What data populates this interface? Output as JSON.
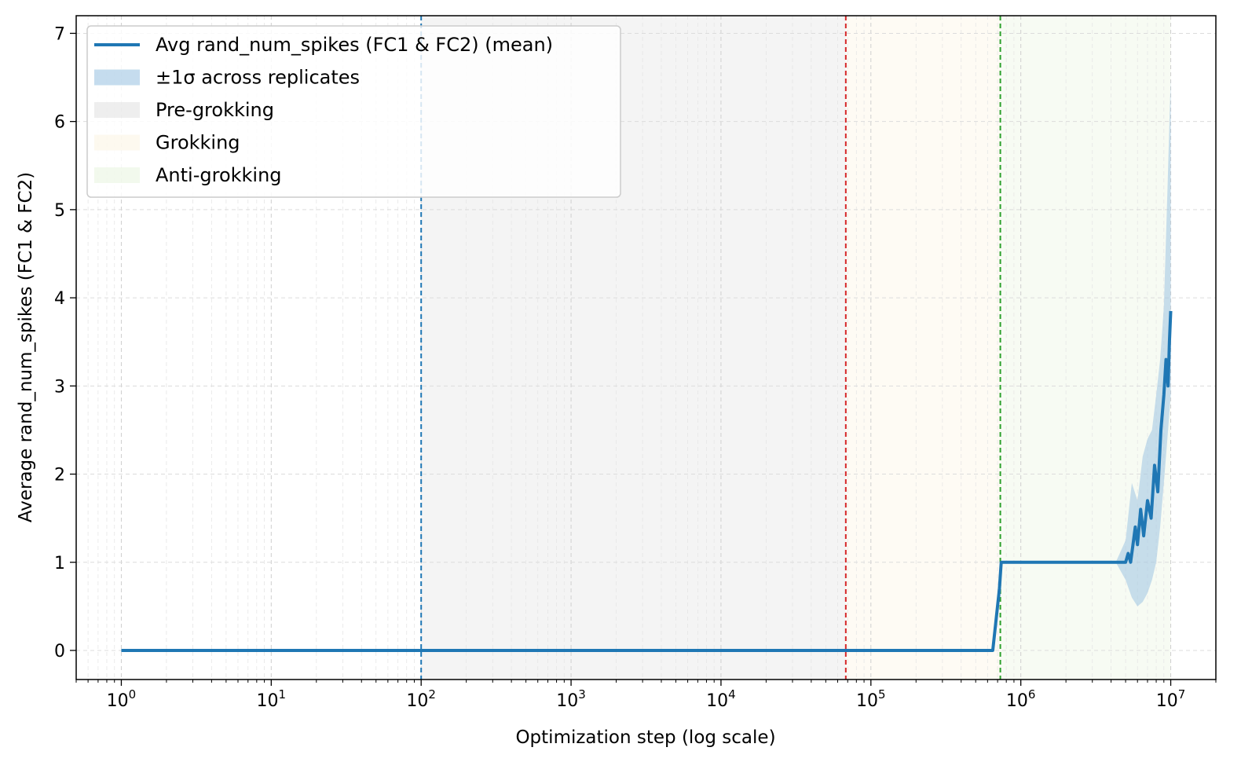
{
  "chart_data": {
    "type": "line",
    "title": "",
    "xlabel": "Optimization step (log scale)",
    "ylabel": "Average rand_num_spikes (FC1 & FC2)",
    "xscale": "log",
    "xlim": [
      0.5,
      20000000
    ],
    "ylim": [
      -0.33,
      7.2
    ],
    "grid": true,
    "legend_position": "upper-left",
    "x_ticks": [
      {
        "value": 1,
        "base": "10",
        "exp": "0"
      },
      {
        "value": 10,
        "base": "10",
        "exp": "1"
      },
      {
        "value": 100,
        "base": "10",
        "exp": "2"
      },
      {
        "value": 1000,
        "base": "10",
        "exp": "3"
      },
      {
        "value": 10000,
        "base": "10",
        "exp": "4"
      },
      {
        "value": 100000,
        "base": "10",
        "exp": "5"
      },
      {
        "value": 1000000,
        "base": "10",
        "exp": "6"
      },
      {
        "value": 10000000,
        "base": "10",
        "exp": "7"
      }
    ],
    "y_ticks": [
      0,
      1,
      2,
      3,
      4,
      5,
      6,
      7
    ],
    "phases": [
      {
        "name": "Pre-grokking",
        "start": 100,
        "end": 68000,
        "color": "#d9d9d9"
      },
      {
        "name": "Grokking",
        "start": 68000,
        "end": 730000,
        "color": "#fbf2dc"
      },
      {
        "name": "Anti-grokking",
        "start": 730000,
        "end": 10000000,
        "color": "#e3f2d8"
      }
    ],
    "vlines": [
      {
        "x": 100,
        "color": "#1f77b4"
      },
      {
        "x": 68000,
        "color": "#d62728"
      },
      {
        "x": 730000,
        "color": "#2ca02c"
      }
    ],
    "series": [
      {
        "name": "Avg rand_num_spikes (FC1 & FC2) (mean)",
        "color": "#1f77b4",
        "x": [
          1,
          10,
          100,
          1000,
          10000,
          100000,
          500000,
          650000,
          720000,
          740000,
          1000000,
          3000000,
          5000000,
          5200000,
          5400000,
          5600000,
          5800000,
          6000000,
          6300000,
          6600000,
          7000000,
          7400000,
          7800000,
          8200000,
          8600000,
          9000000,
          9300000,
          9600000,
          9800000,
          10000000
        ],
        "y": [
          0,
          0,
          0,
          0,
          0,
          0,
          0,
          0,
          0.7,
          1,
          1,
          1,
          1,
          1.1,
          1,
          1.2,
          1.4,
          1.2,
          1.6,
          1.3,
          1.7,
          1.5,
          2.1,
          1.8,
          2.5,
          2.9,
          3.3,
          3.0,
          3.5,
          3.85
        ]
      }
    ],
    "band": {
      "name": "±1σ across replicates",
      "color": "#9ec4e2",
      "x": [
        4300000,
        5000000,
        5500000,
        6000000,
        6500000,
        7000000,
        7500000,
        8000000,
        8500000,
        9000000,
        9500000,
        10000000
      ],
      "upper": [
        1.0,
        1.25,
        1.9,
        1.7,
        2.2,
        2.4,
        2.5,
        2.9,
        3.3,
        3.9,
        5.2,
        6.5
      ],
      "lower": [
        1.0,
        0.8,
        0.6,
        0.5,
        0.55,
        0.65,
        0.8,
        1.0,
        1.4,
        1.9,
        2.4,
        2.9
      ]
    },
    "legend": [
      {
        "label": "Avg rand_num_spikes (FC1 & FC2) (mean)",
        "kind": "line",
        "color": "#1f77b4"
      },
      {
        "label": "±1σ across replicates",
        "kind": "patch",
        "color": "#9ec4e2"
      },
      {
        "label": "Pre-grokking",
        "kind": "patch",
        "color": "#d9d9d9"
      },
      {
        "label": "Grokking",
        "kind": "patch",
        "color": "#fbf2dc"
      },
      {
        "label": "Anti-grokking",
        "kind": "patch",
        "color": "#e3f2d8"
      }
    ]
  }
}
